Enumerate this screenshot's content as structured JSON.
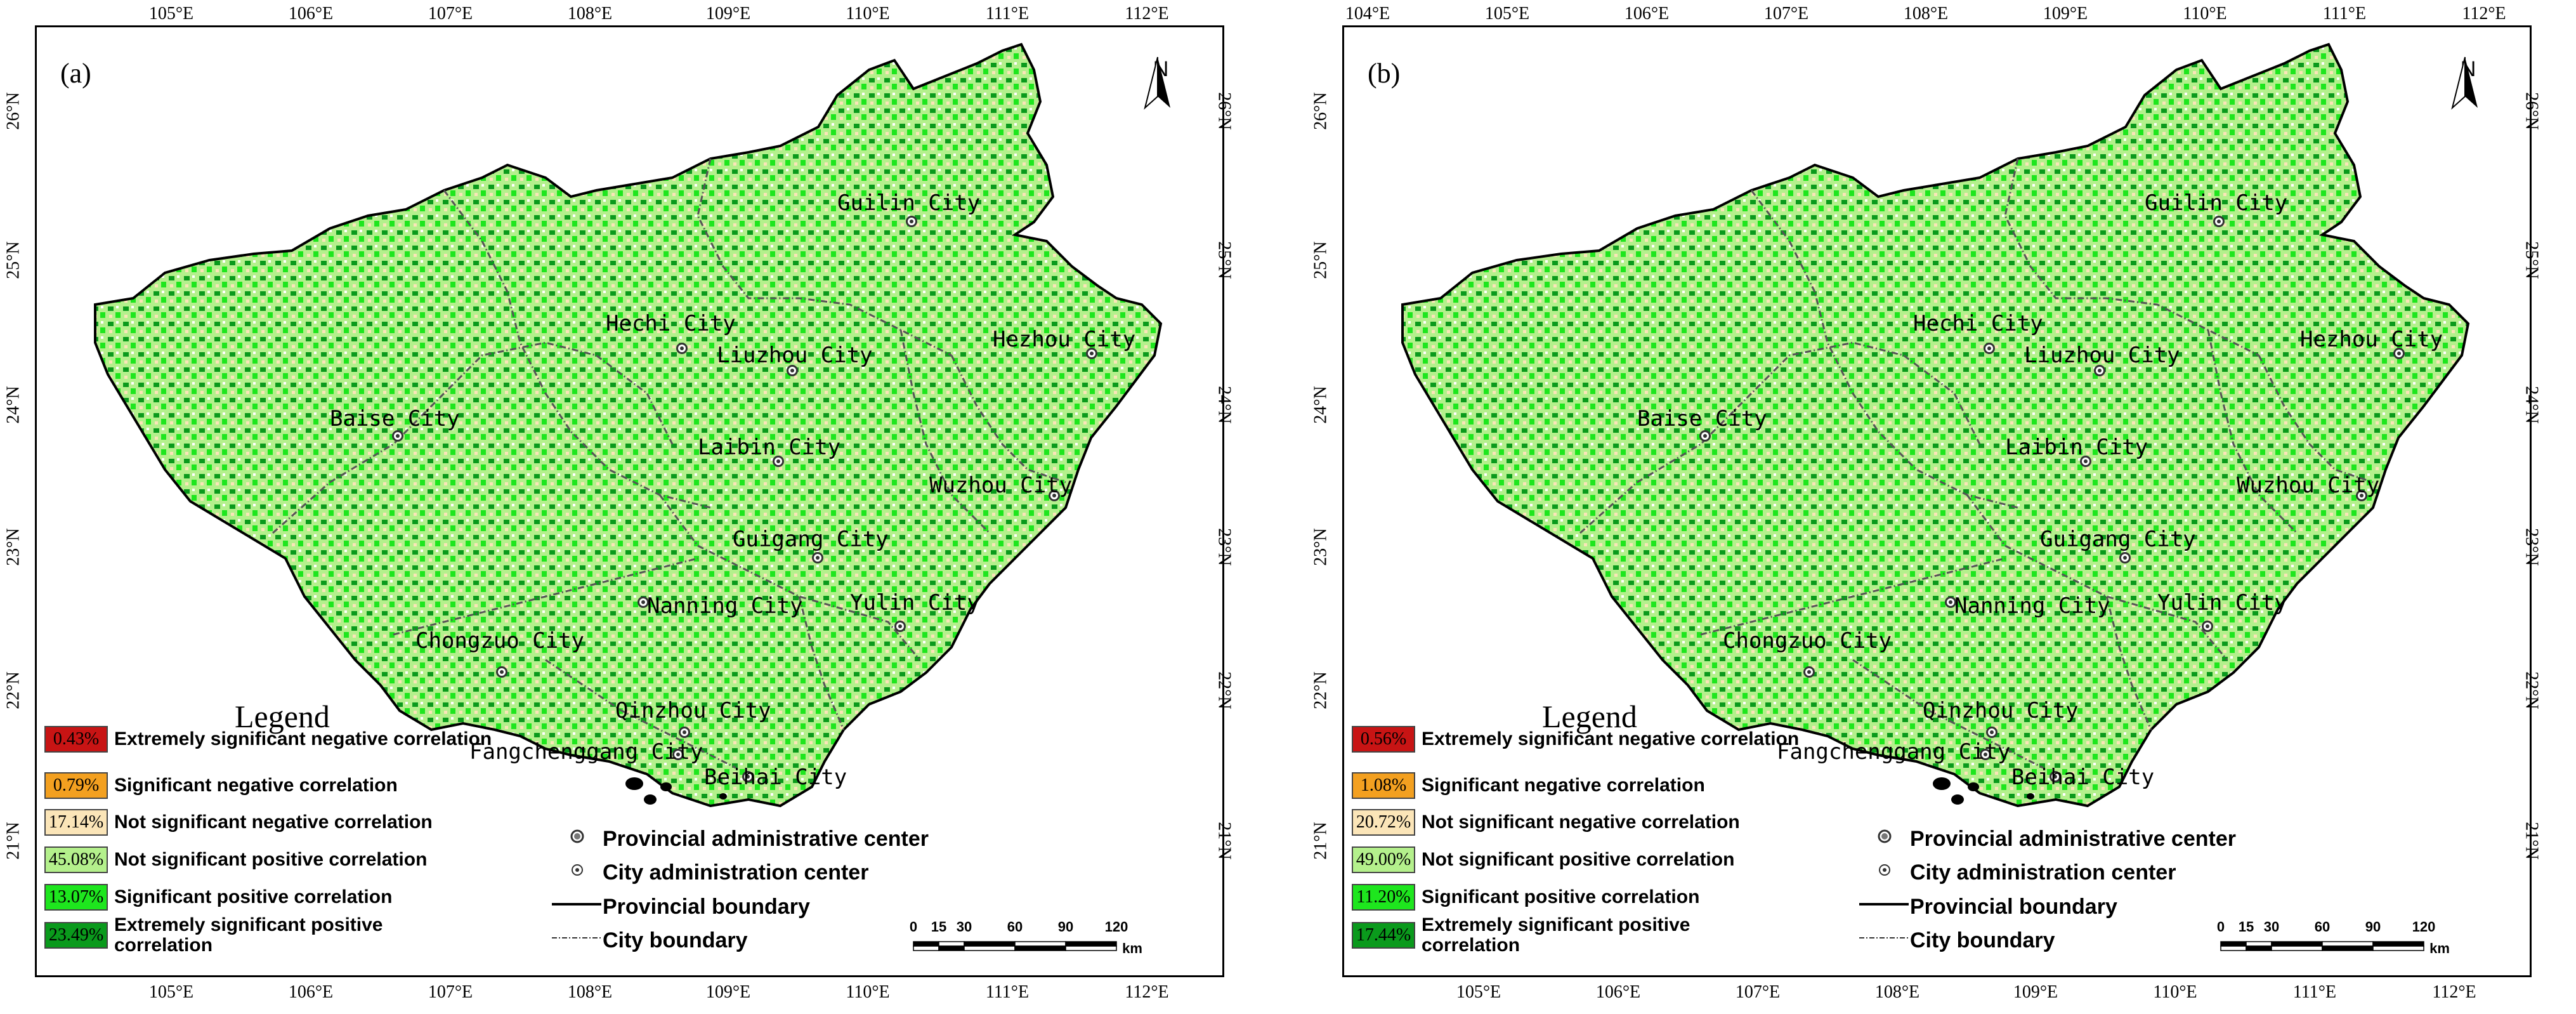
{
  "panels": [
    {
      "label": "(a)",
      "lon_ticks_top": [
        "105°E",
        "106°E",
        "107°E",
        "108°E",
        "109°E",
        "110°E",
        "111°E",
        "112°E"
      ],
      "lon_ticks_bottom": [
        "105°E",
        "106°E",
        "107°E",
        "108°E",
        "109°E",
        "110°E",
        "111°E",
        "112°E"
      ],
      "lat_ticks": [
        "26°N",
        "25°N",
        "24°N",
        "23°N",
        "22°N",
        "21°N"
      ],
      "north_label": "N",
      "cities": [
        {
          "name": "Guilin City"
        },
        {
          "name": "Hechi City"
        },
        {
          "name": "Liuzhou City"
        },
        {
          "name": "Hezhou City"
        },
        {
          "name": "Baise City"
        },
        {
          "name": "Laibin City"
        },
        {
          "name": "Wuzhou City"
        },
        {
          "name": "Guigang City"
        },
        {
          "name": "Nanning City"
        },
        {
          "name": "Yulin City"
        },
        {
          "name": "Chongzuo City"
        },
        {
          "name": "Qinzhou City"
        },
        {
          "name": "Fangchenggang City"
        },
        {
          "name": "Beihai City"
        }
      ],
      "legend_title": "Legend",
      "legend": [
        {
          "pct": "0.43%",
          "label": "Extremely significant negative correlation",
          "color": "#c81414"
        },
        {
          "pct": "0.79%",
          "label": "Significant negative correlation",
          "color": "#f3a020"
        },
        {
          "pct": "17.14%",
          "label": "Not significant negative correlation",
          "color": "#fbe5b8"
        },
        {
          "pct": "45.08%",
          "label": "Not significant positive correlation",
          "color": "#b4f08c"
        },
        {
          "pct": "13.07%",
          "label": "Significant positive correlation",
          "color": "#1ee61e"
        },
        {
          "pct": "23.49%",
          "label": "Extremely significant positive correlation",
          "color": "#0a9a1c"
        }
      ],
      "symbols": {
        "provincial_center": "Provincial administrative center",
        "city_center": "City administration center",
        "provincial_boundary": "Provincial boundary",
        "city_boundary": "City boundary"
      },
      "scale": {
        "labels": [
          "0",
          "15",
          "30",
          "60",
          "90",
          "120"
        ],
        "unit": "km"
      }
    },
    {
      "label": "(b)",
      "lon_ticks_top": [
        "104°E",
        "105°E",
        "106°E",
        "107°E",
        "108°E",
        "109°E",
        "110°E",
        "111°E",
        "112°E"
      ],
      "lon_ticks_bottom": [
        "105°E",
        "106°E",
        "107°E",
        "108°E",
        "109°E",
        "110°E",
        "111°E",
        "112°E"
      ],
      "lat_ticks": [
        "26°N",
        "25°N",
        "24°N",
        "23°N",
        "22°N",
        "21°N"
      ],
      "north_label": "N",
      "cities": [
        {
          "name": "Guilin City"
        },
        {
          "name": "Hechi City"
        },
        {
          "name": "Liuzhou City"
        },
        {
          "name": "Hezhou City"
        },
        {
          "name": "Baise City"
        },
        {
          "name": "Laibin City"
        },
        {
          "name": "Wuzhou City"
        },
        {
          "name": "Guigang City"
        },
        {
          "name": "Nanning City"
        },
        {
          "name": "Yulin City"
        },
        {
          "name": "Chongzuo City"
        },
        {
          "name": "Qinzhou City"
        },
        {
          "name": "Fangchenggang City"
        },
        {
          "name": "Beihai City"
        }
      ],
      "legend_title": "Legend",
      "legend": [
        {
          "pct": "0.56%",
          "label": "Extremely significant negative correlation",
          "color": "#c81414"
        },
        {
          "pct": "1.08%",
          "label": "Significant negative correlation",
          "color": "#f3a020"
        },
        {
          "pct": "20.72%",
          "label": "Not significant negative correlation",
          "color": "#fbe5b8"
        },
        {
          "pct": "49.00%",
          "label": "Not significant positive correlation",
          "color": "#b4f08c"
        },
        {
          "pct": "11.20%",
          "label": "Significant positive correlation",
          "color": "#1ee61e"
        },
        {
          "pct": "17.44%",
          "label": "Extremely significant positive correlation",
          "color": "#0a9a1c"
        }
      ],
      "symbols": {
        "provincial_center": "Provincial administrative center",
        "city_center": "City administration center",
        "provincial_boundary": "Provincial boundary",
        "city_boundary": "City boundary"
      },
      "scale": {
        "labels": [
          "0",
          "15",
          "30",
          "60",
          "90",
          "120"
        ],
        "unit": "km"
      }
    }
  ]
}
